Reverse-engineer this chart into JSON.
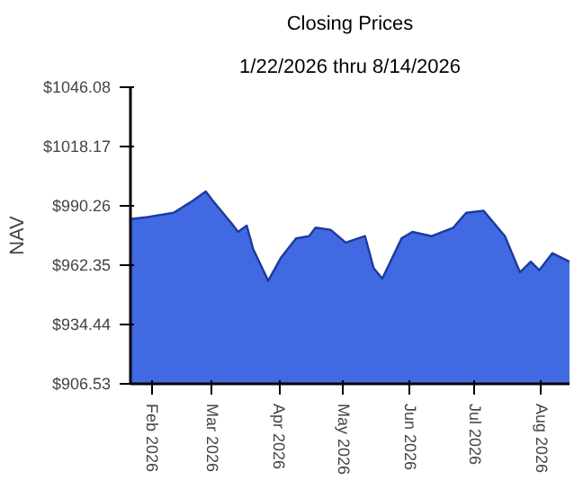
{
  "chart_data": {
    "type": "area",
    "title": "Closing Prices",
    "subtitle": "1/22/2026 thru 8/14/2026",
    "ylabel": "NAV",
    "x": [
      "2026-01-22",
      "2026-01-30",
      "2026-02-11",
      "2026-02-19",
      "2026-02-26",
      "2026-03-01",
      "2026-03-10",
      "2026-03-13",
      "2026-03-17",
      "2026-03-20",
      "2026-03-27",
      "2026-04-02",
      "2026-04-09",
      "2026-04-15",
      "2026-04-18",
      "2026-04-25",
      "2026-05-02",
      "2026-05-11",
      "2026-05-15",
      "2026-05-19",
      "2026-05-28",
      "2026-06-02",
      "2026-06-11",
      "2026-06-21",
      "2026-06-27",
      "2026-07-05",
      "2026-07-15",
      "2026-07-22",
      "2026-07-27",
      "2026-07-31",
      "2026-08-06",
      "2026-08-14"
    ],
    "series": [
      {
        "color": "#4169e1",
        "values": [
          984,
          985,
          987,
          992,
          997,
          993,
          982,
          978,
          981,
          970,
          955,
          966,
          975,
          976,
          980,
          979,
          973,
          976,
          961,
          956,
          975,
          978,
          976,
          980,
          987,
          988,
          976,
          959,
          964,
          960,
          968,
          964
        ]
      }
    ],
    "xlim": [
      "2026-01-22",
      "2026-08-14"
    ],
    "xticks": [
      {
        "value": "2026-02-01",
        "label": "Feb 2026"
      },
      {
        "value": "2026-03-01",
        "label": "Mar 2026"
      },
      {
        "value": "2026-04-01",
        "label": "Apr 2026"
      },
      {
        "value": "2026-05-01",
        "label": "May 2026"
      },
      {
        "value": "2026-06-01",
        "label": "Jun 2026"
      },
      {
        "value": "2026-07-01",
        "label": "Jul 2026"
      },
      {
        "value": "2026-08-01",
        "label": "Aug 2026"
      }
    ],
    "ylim": [
      906.53,
      1046.08
    ],
    "yticks": [
      {
        "value": 906.53,
        "label": "$906.53"
      },
      {
        "value": 934.44,
        "label": "$934.44"
      },
      {
        "value": 962.35,
        "label": "$962.35"
      },
      {
        "value": 990.26,
        "label": "$990.26"
      },
      {
        "value": 1018.17,
        "label": "$1018.17"
      },
      {
        "value": 1046.08,
        "label": "$1046.08"
      }
    ],
    "tick_labels": "xy"
  }
}
